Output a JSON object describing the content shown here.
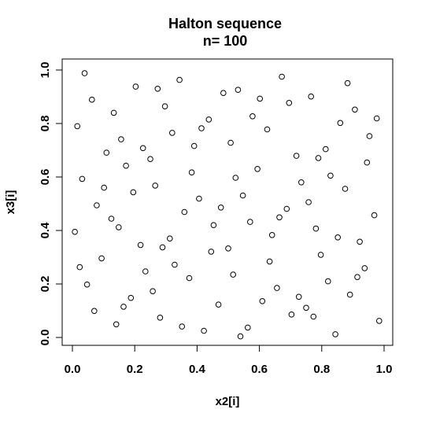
{
  "chart_data": {
    "type": "scatter",
    "title": "Halton sequence",
    "subtitle": "n= 100",
    "xlabel": "x2[i]",
    "ylabel": "x3[i]",
    "xlim": [
      0,
      1.0
    ],
    "ylim": [
      0,
      1.0
    ],
    "xticks": [
      0.0,
      0.2,
      0.4,
      0.6,
      0.8,
      1.0
    ],
    "xtick_labels": [
      "0.0",
      "0.2",
      "0.4",
      "0.6",
      "0.8",
      "1.0"
    ],
    "yticks": [
      0.0,
      0.2,
      0.4,
      0.6,
      0.8,
      1.0
    ],
    "ytick_labels": [
      "0.0",
      "0.2",
      "0.4",
      "0.6",
      "0.8",
      "1.0"
    ],
    "grid": false,
    "series": [
      {
        "marker": "open-circle",
        "color": "#000000",
        "points": [
          [
            0.5,
            0.333
          ],
          [
            0.25,
            0.667
          ],
          [
            0.75,
            0.111
          ],
          [
            0.125,
            0.444
          ],
          [
            0.625,
            0.778
          ],
          [
            0.375,
            0.222
          ],
          [
            0.875,
            0.556
          ],
          [
            0.0625,
            0.889
          ],
          [
            0.5625,
            0.037
          ],
          [
            0.3125,
            0.37
          ],
          [
            0.8125,
            0.704
          ],
          [
            0.1875,
            0.148
          ],
          [
            0.6875,
            0.481
          ],
          [
            0.4375,
            0.815
          ],
          [
            0.9375,
            0.259
          ],
          [
            0.03125,
            0.593
          ],
          [
            0.53125,
            0.926
          ],
          [
            0.28125,
            0.074
          ],
          [
            0.78125,
            0.407
          ],
          [
            0.15625,
            0.741
          ],
          [
            0.65625,
            0.185
          ],
          [
            0.40625,
            0.519
          ],
          [
            0.90625,
            0.852
          ],
          [
            0.09375,
            0.296
          ],
          [
            0.59375,
            0.63
          ],
          [
            0.34375,
            0.963
          ],
          [
            0.84375,
            0.012
          ],
          [
            0.21875,
            0.346
          ],
          [
            0.71875,
            0.679
          ],
          [
            0.46875,
            0.123
          ],
          [
            0.96875,
            0.457
          ],
          [
            0.015625,
            0.79
          ],
          [
            0.515625,
            0.235
          ],
          [
            0.265625,
            0.568
          ],
          [
            0.765625,
            0.901
          ],
          [
            0.140625,
            0.049
          ],
          [
            0.640625,
            0.383
          ],
          [
            0.390625,
            0.716
          ],
          [
            0.890625,
            0.16
          ],
          [
            0.078125,
            0.494
          ],
          [
            0.578125,
            0.827
          ],
          [
            0.328125,
            0.272
          ],
          [
            0.828125,
            0.605
          ],
          [
            0.203125,
            0.938
          ],
          [
            0.703125,
            0.086
          ],
          [
            0.453125,
            0.42
          ],
          [
            0.953125,
            0.753
          ],
          [
            0.046875,
            0.198
          ],
          [
            0.546875,
            0.531
          ],
          [
            0.296875,
            0.864
          ],
          [
            0.796875,
            0.309
          ],
          [
            0.171875,
            0.642
          ],
          [
            0.671875,
            0.975
          ],
          [
            0.421875,
            0.025
          ],
          [
            0.921875,
            0.358
          ],
          [
            0.109375,
            0.691
          ],
          [
            0.609375,
            0.136
          ],
          [
            0.359375,
            0.469
          ],
          [
            0.859375,
            0.802
          ],
          [
            0.234375,
            0.247
          ],
          [
            0.734375,
            0.58
          ],
          [
            0.484375,
            0.914
          ],
          [
            0.984375,
            0.062
          ],
          [
            0.0078125,
            0.395
          ],
          [
            0.5078125,
            0.728
          ],
          [
            0.2578125,
            0.173
          ],
          [
            0.7578125,
            0.506
          ],
          [
            0.1328125,
            0.84
          ],
          [
            0.6328125,
            0.284
          ],
          [
            0.3828125,
            0.617
          ],
          [
            0.8828125,
            0.951
          ],
          [
            0.0703125,
            0.099
          ],
          [
            0.5703125,
            0.432
          ],
          [
            0.3203125,
            0.765
          ],
          [
            0.8203125,
            0.21
          ],
          [
            0.1953125,
            0.543
          ],
          [
            0.6953125,
            0.877
          ],
          [
            0.4453125,
            0.321
          ],
          [
            0.9453125,
            0.654
          ],
          [
            0.0390625,
            0.988
          ],
          [
            0.5390625,
            0.004
          ],
          [
            0.2890625,
            0.337
          ],
          [
            0.7890625,
            0.671
          ],
          [
            0.1640625,
            0.115
          ],
          [
            0.6640625,
            0.449
          ],
          [
            0.4140625,
            0.782
          ],
          [
            0.9140625,
            0.226
          ],
          [
            0.1015625,
            0.56
          ],
          [
            0.6015625,
            0.893
          ],
          [
            0.3515625,
            0.041
          ],
          [
            0.8515625,
            0.374
          ],
          [
            0.2265625,
            0.708
          ],
          [
            0.7265625,
            0.152
          ],
          [
            0.4765625,
            0.486
          ],
          [
            0.9765625,
            0.819
          ],
          [
            0.0234375,
            0.263
          ],
          [
            0.5234375,
            0.597
          ],
          [
            0.2734375,
            0.93
          ],
          [
            0.7734375,
            0.078
          ],
          [
            0.1484375,
            0.412
          ]
        ]
      }
    ]
  }
}
